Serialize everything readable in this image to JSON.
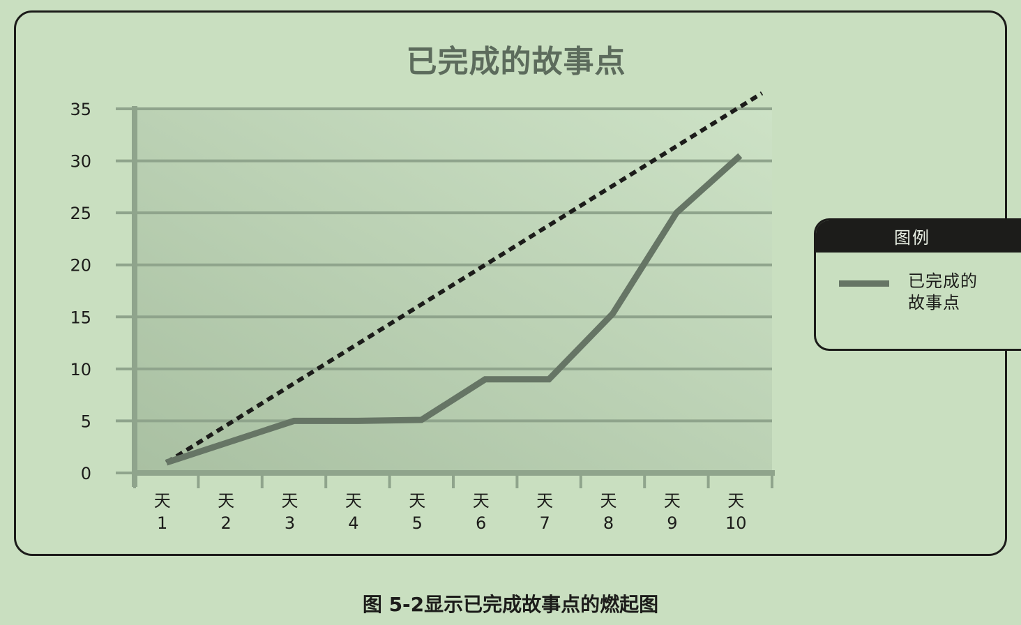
{
  "chart_data": {
    "type": "line",
    "title": "已完成的故事点",
    "x_prefix": "天",
    "categories": [
      "1",
      "2",
      "3",
      "4",
      "5",
      "6",
      "7",
      "8",
      "9",
      "10"
    ],
    "series": [
      {
        "name": "已完成的故事点",
        "values": [
          1,
          3,
          5,
          5,
          5.1,
          9,
          9,
          15.3,
          25,
          30.5
        ],
        "color": "#667565",
        "style": "solid"
      },
      {
        "values": [
          1,
          4.8,
          8.6,
          12.4,
          16.2,
          20,
          23.8,
          27.6,
          31.4,
          35.2
        ],
        "extends_to_value": 36.5,
        "color": "#1c1c1a",
        "style": "dashed"
      }
    ],
    "yticks": [
      "0",
      "5",
      "10",
      "15",
      "20",
      "25",
      "30",
      "35"
    ],
    "ylim": [
      0,
      35
    ],
    "grid": true,
    "legend": {
      "title": "图例",
      "placement": "right",
      "label_lines": [
        "已完成的",
        "故事点"
      ]
    }
  },
  "caption": "图 5-2显示已完成故事点的燃起图",
  "colors": {
    "background": "#c9dfc0",
    "plot_area": "#b9cfb1",
    "grid": "#8fa48c",
    "axis": "#8fa48c"
  }
}
